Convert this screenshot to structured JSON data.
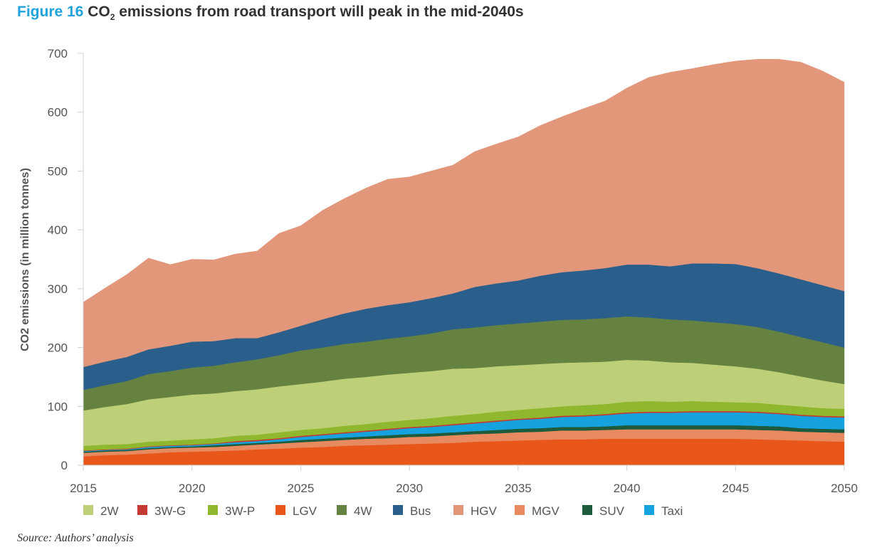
{
  "title": {
    "figure": "Figure 16",
    "text_before": " CO",
    "subscript": "2",
    "text_after": " emissions from road transport will peak in the mid-2040s"
  },
  "source": "Source: Authors’ analysis",
  "chart_data": {
    "type": "area",
    "stacked": true,
    "ylabel": "CO2 emissions (in million tonnes)",
    "xlabel": "",
    "ylim": [
      0,
      700
    ],
    "yticks": [
      0,
      100,
      200,
      300,
      400,
      500,
      600,
      700
    ],
    "xticks": [
      2015,
      2020,
      2025,
      2030,
      2035,
      2040,
      2045,
      2050
    ],
    "grid": false,
    "legend_position": "bottom",
    "x": [
      2015,
      2016,
      2017,
      2018,
      2019,
      2020,
      2021,
      2022,
      2023,
      2024,
      2025,
      2026,
      2027,
      2028,
      2029,
      2030,
      2031,
      2032,
      2033,
      2034,
      2035,
      2036,
      2037,
      2038,
      2039,
      2040,
      2041,
      2042,
      2043,
      2044,
      2045,
      2046,
      2047,
      2048,
      2049,
      2050
    ],
    "stack_order": [
      "LGV",
      "MGV",
      "SUV",
      "Taxi",
      "3W-G",
      "3W-P",
      "2W",
      "4W",
      "Bus",
      "HGV"
    ],
    "legend_order": [
      "2W",
      "3W-G",
      "3W-P",
      "LGV",
      "4W",
      "Bus",
      "HGV",
      "MGV",
      "SUV",
      "Taxi"
    ],
    "series": [
      {
        "name": "LGV",
        "color": "#e8561a",
        "values": [
          15,
          17,
          18,
          20,
          22,
          23,
          24,
          25,
          27,
          28,
          30,
          31,
          33,
          34,
          35,
          36,
          37,
          38,
          40,
          41,
          42,
          43,
          44,
          44,
          45,
          45,
          45,
          45,
          45,
          45,
          45,
          44,
          43,
          42,
          41,
          40
        ]
      },
      {
        "name": "MGV",
        "color": "#e88a60",
        "values": [
          6,
          6,
          6,
          7,
          7,
          7,
          7,
          8,
          8,
          9,
          9,
          10,
          10,
          11,
          11,
          12,
          12,
          13,
          13,
          13,
          14,
          14,
          15,
          15,
          15,
          16,
          16,
          16,
          16,
          16,
          16,
          16,
          16,
          15,
          15,
          15
        ]
      },
      {
        "name": "SUV",
        "color": "#1e5a3c",
        "values": [
          2,
          2,
          2,
          2,
          2,
          2,
          3,
          3,
          3,
          3,
          4,
          4,
          4,
          4,
          5,
          5,
          5,
          5,
          5,
          6,
          6,
          6,
          6,
          6,
          6,
          7,
          7,
          7,
          7,
          7,
          7,
          7,
          7,
          6,
          6,
          6
        ]
      },
      {
        "name": "Taxi",
        "color": "#16a2de",
        "values": [
          1,
          1,
          1,
          2,
          2,
          2,
          2,
          3,
          3,
          4,
          5,
          6,
          7,
          8,
          9,
          10,
          11,
          12,
          13,
          14,
          15,
          16,
          17,
          18,
          19,
          20,
          21,
          21,
          22,
          22,
          22,
          22,
          21,
          21,
          20,
          20
        ]
      },
      {
        "name": "3W-G",
        "color": "#c23a33",
        "values": [
          1,
          1,
          1,
          1,
          1,
          1,
          1,
          2,
          2,
          2,
          2,
          2,
          2,
          2,
          2,
          2,
          2,
          2,
          2,
          2,
          2,
          2,
          2,
          2,
          2,
          2,
          2,
          2,
          2,
          2,
          2,
          2,
          2,
          2,
          2,
          2
        ]
      },
      {
        "name": "3W-P",
        "color": "#8fb82e",
        "values": [
          8,
          8,
          8,
          8,
          8,
          9,
          9,
          9,
          9,
          10,
          10,
          10,
          11,
          11,
          12,
          12,
          13,
          14,
          14,
          15,
          15,
          16,
          16,
          17,
          17,
          18,
          18,
          17,
          17,
          16,
          15,
          15,
          14,
          14,
          13,
          13
        ]
      },
      {
        "name": "2W",
        "color": "#bed077",
        "values": [
          60,
          64,
          68,
          72,
          74,
          76,
          76,
          76,
          77,
          78,
          78,
          79,
          80,
          80,
          80,
          80,
          80,
          80,
          78,
          77,
          76,
          75,
          74,
          73,
          72,
          71,
          69,
          67,
          65,
          63,
          61,
          58,
          55,
          51,
          47,
          42
        ]
      },
      {
        "name": "4W",
        "color": "#658240",
        "values": [
          35,
          37,
          39,
          43,
          44,
          46,
          47,
          49,
          51,
          53,
          57,
          58,
          59,
          60,
          61,
          62,
          64,
          67,
          69,
          70,
          71,
          72,
          73,
          73,
          74,
          74,
          73,
          73,
          72,
          72,
          72,
          71,
          69,
          67,
          65,
          62
        ]
      },
      {
        "name": "Bus",
        "color": "#2a5f8b",
        "values": [
          39,
          40,
          41,
          42,
          43,
          44,
          42,
          41,
          36,
          39,
          42,
          48,
          52,
          56,
          57,
          58,
          60,
          61,
          69,
          71,
          73,
          78,
          81,
          83,
          85,
          88,
          90,
          90,
          97,
          100,
          102,
          100,
          99,
          98,
          97,
          96
        ]
      },
      {
        "name": "HGV",
        "color": "#e2967a",
        "values": [
          110,
          125,
          140,
          155,
          138,
          140,
          138,
          143,
          148,
          168,
          170,
          185,
          195,
          205,
          214,
          213,
          216,
          218,
          230,
          237,
          244,
          255,
          264,
          275,
          284,
          300,
          318,
          330,
          331,
          338,
          345,
          355,
          364,
          369,
          364,
          355
        ]
      }
    ]
  }
}
